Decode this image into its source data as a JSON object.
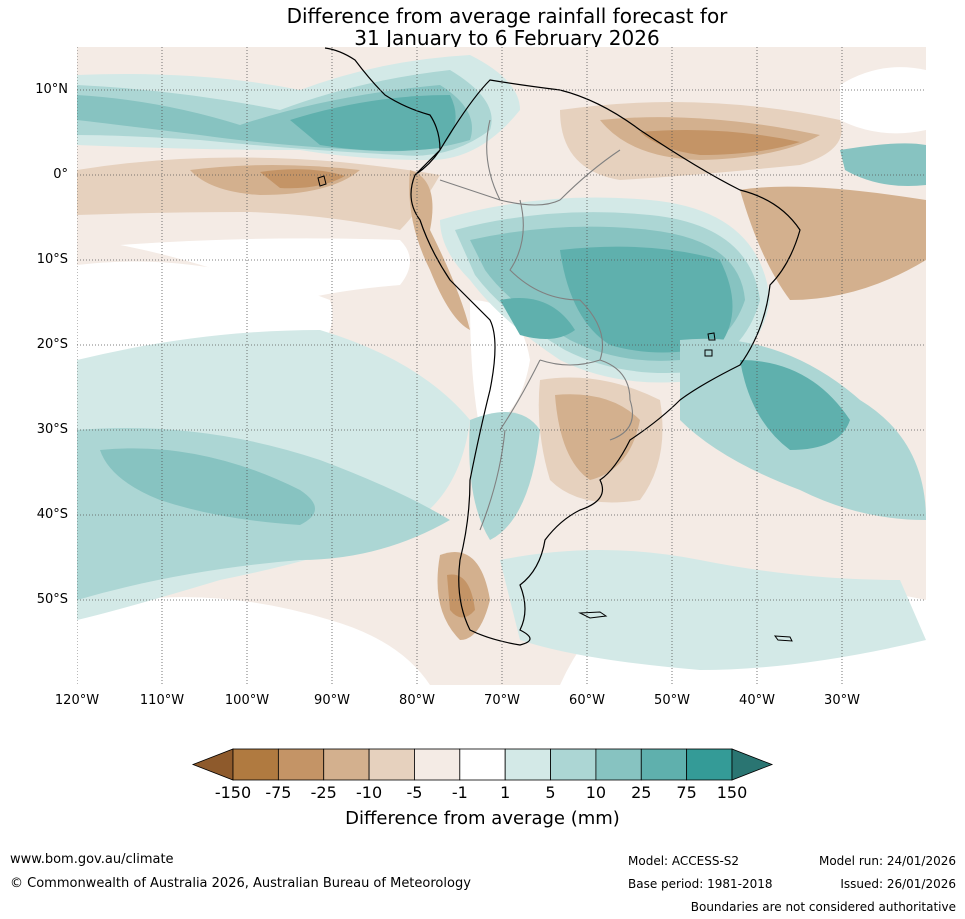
{
  "title": {
    "line1": "Difference from average rainfall forecast for",
    "line2": "31 January to 6 February 2026"
  },
  "map": {
    "lat_labels": [
      "10°N",
      "0°",
      "10°S",
      "20°S",
      "30°S",
      "40°S",
      "50°S"
    ],
    "lon_labels": [
      "120°W",
      "110°W",
      "100°W",
      "90°W",
      "80°W",
      "70°W",
      "60°W",
      "50°W",
      "40°W",
      "30°W"
    ],
    "lat_range": [
      -60,
      15
    ],
    "lon_range": [
      -120,
      -20
    ]
  },
  "colorbar": {
    "ticks": [
      "-150",
      "-75",
      "-25",
      "-10",
      "-5",
      "-1",
      "1",
      "5",
      "10",
      "25",
      "75",
      "150"
    ],
    "colors": [
      "#8e5a2c",
      "#b07a40",
      "#c49466",
      "#d3b08e",
      "#e6d1be",
      "#f4ebe5",
      "#ffffff",
      "#d3e9e7",
      "#acd6d4",
      "#87c3c1",
      "#5fb0ad",
      "#349b97",
      "#2a7572"
    ],
    "label": "Difference from average (mm)"
  },
  "footer": {
    "url": "www.bom.gov.au/climate",
    "copyright": "© Commonwealth of Australia 2026, Australian Bureau of Meteorology",
    "model": "Model: ACCESS-S2",
    "base_period": "Base period: 1981-2018",
    "model_run": "Model run: 24/01/2026",
    "issued": "Issued: 26/01/2026",
    "disclaimer": "Boundaries are not considered authoritative"
  }
}
